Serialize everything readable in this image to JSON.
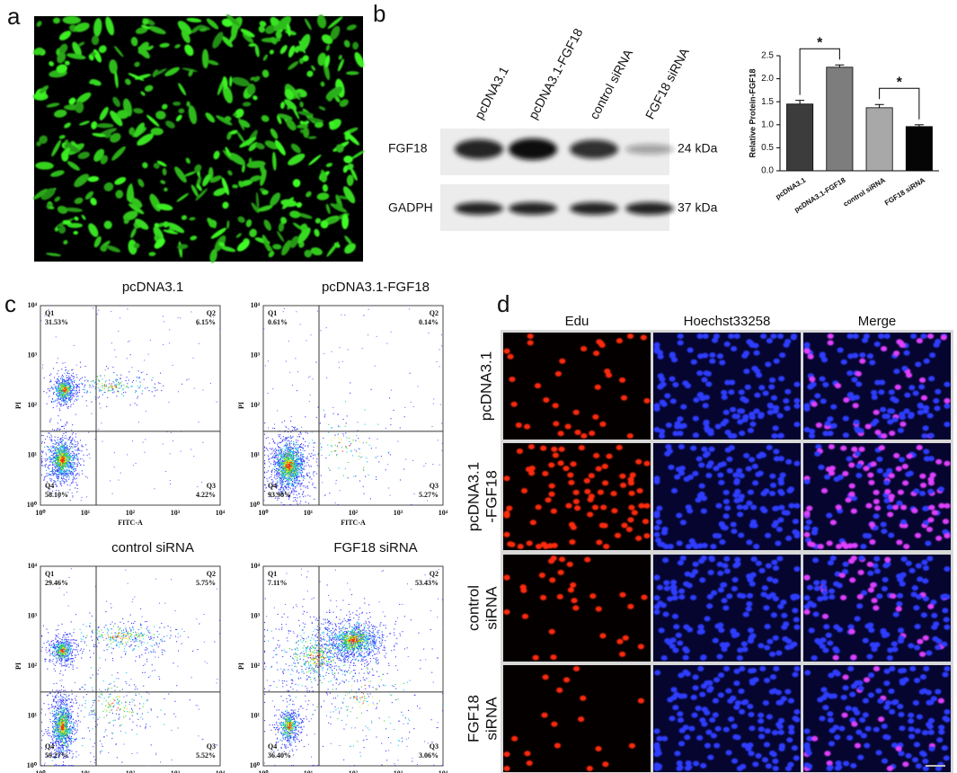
{
  "panel_labels": [
    "a",
    "b",
    "c",
    "d"
  ],
  "blot": {
    "lanes": [
      "pcDNA3.1",
      "pcDNA3.1-FGF18",
      "control siRNA",
      "FGF18 siRNA"
    ],
    "rows": [
      {
        "protein": "FGF18",
        "size": "24 kDa"
      },
      {
        "protein": "GADPH",
        "size": "37 kDa"
      }
    ]
  },
  "chart_data": {
    "type": "bar",
    "ylabel": "Relative Protein-FGF18",
    "categories": [
      "pcDNA3.1",
      "pcDNA3.1-FGF18",
      "control siRNA",
      "FGF18 siRNA"
    ],
    "values": [
      1.45,
      2.25,
      1.37,
      0.96
    ],
    "errors": [
      0.08,
      0.05,
      0.07,
      0.04
    ],
    "colors": [
      "#3c3c3c",
      "#7d7d7d",
      "#a8a8a8",
      "#050505"
    ],
    "ylim": [
      0,
      2.5
    ],
    "yticks": [
      {
        "value": 0,
        "label": "0.0"
      },
      0.5,
      {
        "value": 1,
        "label": "1.0"
      },
      1.5,
      {
        "value": 2,
        "label": "2.0"
      },
      2.5
    ],
    "annotations": [
      "*",
      "*"
    ]
  },
  "flow": {
    "x_label": "FITC-A",
    "y_label": "PI",
    "ticks": [
      "10⁰",
      "10¹",
      "10²",
      "10³",
      "10⁴"
    ],
    "plots": [
      {
        "title": "pcDNA3.1",
        "quadrants": [
          {
            "name": "Q1",
            "percent": "31.53%"
          },
          {
            "name": "Q2",
            "percent": "6.15%"
          },
          {
            "name": "Q3",
            "percent": "4.22%"
          },
          {
            "name": "Q4",
            "percent": "58.10%"
          }
        ]
      },
      {
        "title": "pcDNA3.1-FGF18",
        "quadrants": [
          {
            "name": "Q1",
            "percent": "0.61%"
          },
          {
            "name": "Q2",
            "percent": "0.14%"
          },
          {
            "name": "Q3",
            "percent": "5.27%"
          },
          {
            "name": "Q4",
            "percent": "93.98%"
          }
        ]
      },
      {
        "title": "control siRNA",
        "quadrants": [
          {
            "name": "Q1",
            "percent": "29.46%"
          },
          {
            "name": "Q2",
            "percent": "5.75%"
          },
          {
            "name": "Q3",
            "percent": "5.52%"
          },
          {
            "name": "Q4",
            "percent": "59.27%"
          }
        ]
      },
      {
        "title": "FGF18 siRNA",
        "quadrants": [
          {
            "name": "Q1",
            "percent": "7.11%"
          },
          {
            "name": "Q2",
            "percent": "53.43%"
          },
          {
            "name": "Q3",
            "percent": "3.06%"
          },
          {
            "name": "Q4",
            "percent": "36.40%"
          }
        ]
      }
    ]
  },
  "imaging": {
    "columns": [
      "Edu",
      "Hoechst33258",
      "Merge"
    ],
    "rows": [
      [
        "pcDNA3.1"
      ],
      [
        "pcDNA3.1",
        "-FGF18"
      ],
      [
        "control",
        "siRNA"
      ],
      [
        "FGF18",
        "siRNA"
      ]
    ]
  }
}
